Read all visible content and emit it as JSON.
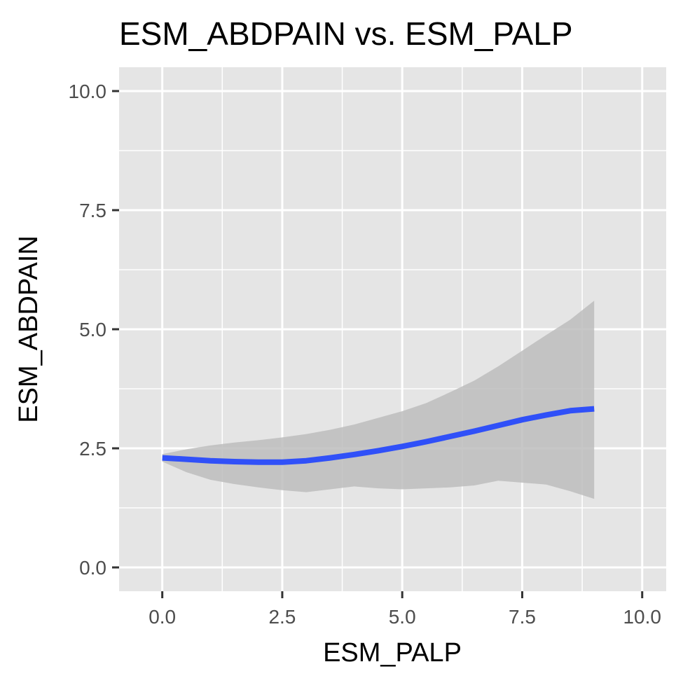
{
  "chart_data": {
    "type": "line",
    "title": "ESM_ABDPAIN vs. ESM_PALP",
    "xlabel": "ESM_PALP",
    "ylabel": "ESM_ABDPAIN",
    "xlim": [
      -0.9,
      10.5
    ],
    "ylim": [
      -0.5,
      10.5
    ],
    "x_ticks": [
      0.0,
      2.5,
      5.0,
      7.5,
      10.0
    ],
    "x_tick_labels": [
      "0.0",
      "2.5",
      "5.0",
      "7.5",
      "10.0"
    ],
    "y_ticks": [
      0.0,
      2.5,
      5.0,
      7.5,
      10.0
    ],
    "y_tick_labels": [
      "0.0",
      "2.5",
      "5.0",
      "7.5",
      "10.0"
    ],
    "grid": true,
    "legend": "none",
    "colors": {
      "line": "#3050f8",
      "band": "#bdbdbd",
      "panel": "#e5e5e5",
      "grid": "#ffffff"
    },
    "series": [
      {
        "x": [
          0.0,
          0.5,
          1.0,
          1.5,
          2.0,
          2.5,
          3.0,
          3.5,
          4.0,
          4.5,
          5.0,
          5.5,
          6.0,
          6.5,
          7.0,
          7.5,
          8.0,
          8.5,
          9.0
        ],
        "y": [
          2.3,
          2.27,
          2.24,
          2.22,
          2.21,
          2.21,
          2.24,
          2.3,
          2.37,
          2.45,
          2.54,
          2.64,
          2.75,
          2.86,
          2.98,
          3.1,
          3.2,
          3.29,
          3.33
        ],
        "ymin": [
          2.22,
          2.0,
          1.84,
          1.75,
          1.68,
          1.62,
          1.58,
          1.64,
          1.7,
          1.66,
          1.64,
          1.66,
          1.68,
          1.72,
          1.82,
          1.78,
          1.74,
          1.6,
          1.44
        ],
        "ymax": [
          2.38,
          2.48,
          2.56,
          2.62,
          2.67,
          2.73,
          2.8,
          2.89,
          3.0,
          3.14,
          3.28,
          3.45,
          3.68,
          3.92,
          4.22,
          4.55,
          4.88,
          5.2,
          5.6
        ]
      }
    ]
  }
}
